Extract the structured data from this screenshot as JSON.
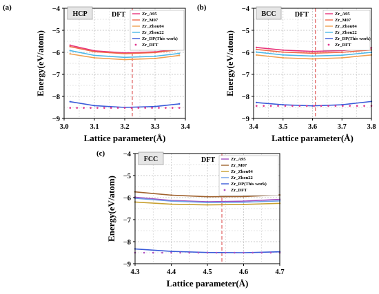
{
  "chart_data": [
    {
      "type": "line",
      "panel_label": "(a)",
      "structure_label": "HCP",
      "dft_marker_label": "DFT",
      "dft_lattice": 3.225,
      "xlabel": "Lattice parameter(Å)",
      "ylabel": "Energy(eV/atom)",
      "xlim": [
        3.0,
        3.4
      ],
      "ylim": [
        -9,
        -4
      ],
      "xticks": [
        "3.0",
        "3.1",
        "3.2",
        "3.3",
        "3.4"
      ],
      "yticks": [
        "-9",
        "-8",
        "-7",
        "-6",
        "-5",
        "-4"
      ],
      "grid": true,
      "legend_position": "top-right",
      "series": [
        {
          "name": "Zr_A95",
          "color": "#e8337a",
          "style": "line",
          "x": [
            3.02,
            3.1,
            3.2,
            3.3,
            3.38
          ],
          "y": [
            -5.68,
            -5.93,
            -6.03,
            -5.98,
            -5.84
          ]
        },
        {
          "name": "Zr_M07",
          "color": "#f06a4a",
          "style": "line",
          "x": [
            3.02,
            3.1,
            3.2,
            3.3,
            3.38
          ],
          "y": [
            -5.74,
            -5.97,
            -6.06,
            -6.01,
            -5.88
          ]
        },
        {
          "name": "Zr_Zhou04",
          "color": "#f0a050",
          "style": "line",
          "x": [
            3.02,
            3.1,
            3.2,
            3.3,
            3.38
          ],
          "y": [
            -6.07,
            -6.25,
            -6.33,
            -6.28,
            -6.14
          ]
        },
        {
          "name": "Zr_Zhou22",
          "color": "#4db8e8",
          "style": "line",
          "x": [
            3.02,
            3.1,
            3.2,
            3.3,
            3.38
          ],
          "y": [
            -5.92,
            -6.14,
            -6.23,
            -6.18,
            -6.05
          ]
        },
        {
          "name": "Zr_DP(This work)",
          "color": "#3a5bd9",
          "style": "line",
          "x": [
            3.02,
            3.1,
            3.2,
            3.3,
            3.38
          ],
          "y": [
            -8.24,
            -8.42,
            -8.5,
            -8.46,
            -8.34
          ]
        },
        {
          "name": "Zr_DFT",
          "color": "#e0338c",
          "style": "dots",
          "x": [
            3.02,
            3.1,
            3.2,
            3.3,
            3.38
          ],
          "y": [
            -8.52,
            -8.52,
            -8.52,
            -8.52,
            -8.52
          ]
        }
      ]
    },
    {
      "type": "line",
      "panel_label": "(b)",
      "structure_label": "BCC",
      "dft_marker_label": "DFT",
      "dft_lattice": 3.61,
      "xlabel": "Lattice parameter(Å)",
      "ylabel": "Energy(eV/atom)",
      "xlim": [
        3.4,
        3.8
      ],
      "ylim": [
        -9,
        -4
      ],
      "xticks": [
        "3.4",
        "3.5",
        "3.6",
        "3.7",
        "3.8"
      ],
      "yticks": [
        "-9",
        "-8",
        "-7",
        "-6",
        "-5",
        "-4"
      ],
      "grid": true,
      "legend_position": "top-right",
      "series": [
        {
          "name": "Zr_A95",
          "color": "#e8337a",
          "style": "line",
          "x": [
            3.41,
            3.5,
            3.6,
            3.7,
            3.8
          ],
          "y": [
            -5.78,
            -5.9,
            -5.96,
            -5.92,
            -5.8
          ]
        },
        {
          "name": "Zr_M07",
          "color": "#f06a4a",
          "style": "line",
          "x": [
            3.41,
            3.5,
            3.6,
            3.7,
            3.8
          ],
          "y": [
            -5.87,
            -5.99,
            -6.04,
            -6.0,
            -5.89
          ]
        },
        {
          "name": "Zr_Zhou04",
          "color": "#f0a050",
          "style": "line",
          "x": [
            3.41,
            3.5,
            3.6,
            3.7,
            3.8
          ],
          "y": [
            -6.12,
            -6.25,
            -6.3,
            -6.25,
            -6.12
          ]
        },
        {
          "name": "Zr_Zhou22",
          "color": "#4db8e8",
          "style": "line",
          "x": [
            3.41,
            3.5,
            3.6,
            3.7,
            3.8
          ],
          "y": [
            -5.99,
            -6.12,
            -6.17,
            -6.13,
            -6.0
          ]
        },
        {
          "name": "Zr_DP(This work)",
          "color": "#3a5bd9",
          "style": "line",
          "x": [
            3.41,
            3.5,
            3.6,
            3.7,
            3.8
          ],
          "y": [
            -8.28,
            -8.38,
            -8.43,
            -8.38,
            -8.23
          ]
        },
        {
          "name": "Zr_DFT",
          "color": "#e0338c",
          "style": "dots",
          "x": [
            3.41,
            3.5,
            3.6,
            3.7,
            3.8
          ],
          "y": [
            -8.43,
            -8.43,
            -8.43,
            -8.43,
            -8.43
          ]
        }
      ]
    },
    {
      "type": "line",
      "panel_label": "(c)",
      "structure_label": "FCC",
      "dft_marker_label": "DFT",
      "dft_lattice": 4.54,
      "xlabel": "Lattice parameter(Å)",
      "ylabel": "Energy(eV/atom)",
      "xlim": [
        4.3,
        4.7
      ],
      "ylim": [
        -9,
        -4
      ],
      "xticks": [
        "4.3",
        "4.4",
        "4.5",
        "4.6",
        "4.7"
      ],
      "yticks": [
        "-9",
        "-8",
        "-7",
        "-6",
        "-5",
        "-4"
      ],
      "grid": true,
      "legend_position": "top-right",
      "series": [
        {
          "name": "Zr_A95",
          "color": "#a04ec0",
          "style": "line",
          "x": [
            4.3,
            4.4,
            4.5,
            4.6,
            4.7
          ],
          "y": [
            -5.98,
            -6.13,
            -6.19,
            -6.16,
            -6.08
          ]
        },
        {
          "name": "Zr_M07",
          "color": "#a0622e",
          "style": "line",
          "x": [
            4.3,
            4.4,
            4.5,
            4.6,
            4.7
          ],
          "y": [
            -5.74,
            -5.89,
            -5.96,
            -5.95,
            -5.88
          ]
        },
        {
          "name": "Zr_Zhou04",
          "color": "#c8a030",
          "style": "line",
          "x": [
            4.3,
            4.4,
            4.5,
            4.6,
            4.7
          ],
          "y": [
            -6.2,
            -6.3,
            -6.33,
            -6.31,
            -6.26
          ]
        },
        {
          "name": "Zr_Zhou22",
          "color": "#6fa0e8",
          "style": "line",
          "x": [
            4.3,
            4.4,
            4.5,
            4.6,
            4.7
          ],
          "y": [
            -6.03,
            -6.16,
            -6.22,
            -6.21,
            -6.15
          ]
        },
        {
          "name": "Zr_DP(This work)",
          "color": "#3a5bd9",
          "style": "line",
          "x": [
            4.3,
            4.4,
            4.5,
            4.6,
            4.7
          ],
          "y": [
            -8.33,
            -8.44,
            -8.49,
            -8.5,
            -8.46
          ]
        },
        {
          "name": "Zr_DFT",
          "color": "#b050c0",
          "style": "dots",
          "x": [
            4.3,
            4.4,
            4.5,
            4.6,
            4.7
          ],
          "y": [
            -8.5,
            -8.5,
            -8.5,
            -8.5,
            -8.5
          ]
        }
      ]
    }
  ]
}
